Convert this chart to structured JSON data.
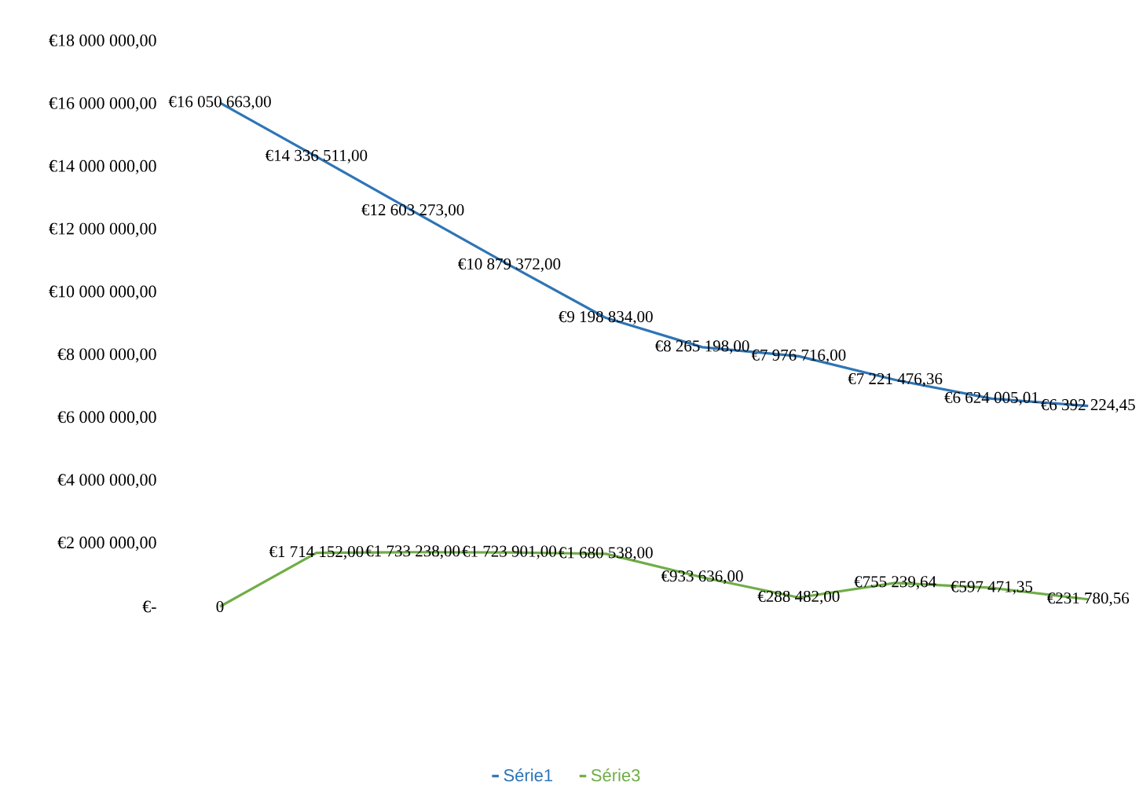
{
  "chart_data": {
    "type": "line",
    "categories": [
      null,
      null,
      null,
      null,
      null,
      null,
      null,
      null,
      null,
      null
    ],
    "series": [
      {
        "name": "Série1",
        "color": "#2e75b6",
        "values": [
          16050663,
          14336511,
          12603273,
          10879372,
          9198834,
          8265198,
          7976716,
          7221476.36,
          6624005.01,
          6392224.45
        ],
        "value_labels": [
          "€16 050 663,00",
          "€14 336 511,00",
          "€12 603 273,00",
          "€10 879 372,00",
          "€9 198 834,00",
          "€8 265 198,00",
          "€7 976 716,00",
          "€7 221 476,36",
          "€6 624 005,01",
          "€6 392 224,45"
        ]
      },
      {
        "name": "Série3",
        "color": "#70ad47",
        "values": [
          0,
          1714152,
          1733238,
          1723901,
          1680538,
          933636,
          288482,
          755239.64,
          597471.35,
          231780.56
        ],
        "value_labels": [
          "0",
          "€1 714 152,00",
          "€1 733 238,00",
          "€1 723 901,00",
          "€1 680 538,00",
          "€933 636,00",
          "€288 482,00",
          "€755 239,64",
          "€597 471,35",
          "€231 780,56"
        ]
      }
    ],
    "ylim": [
      0,
      18000000
    ],
    "yticks": [
      {
        "value": 0,
        "label": "€-"
      },
      {
        "value": 2000000,
        "label": "€2 000 000,00"
      },
      {
        "value": 4000000,
        "label": "€4 000 000,00"
      },
      {
        "value": 6000000,
        "label": "€6 000 000,00"
      },
      {
        "value": 8000000,
        "label": "€8 000 000,00"
      },
      {
        "value": 10000000,
        "label": "€10 000 000,00"
      },
      {
        "value": 12000000,
        "label": "€12 000 000,00"
      },
      {
        "value": 14000000,
        "label": "€14 000 000,00"
      },
      {
        "value": 16000000,
        "label": "€16 000 000,00"
      },
      {
        "value": 18000000,
        "label": "€18 000 000,00"
      }
    ],
    "legend": "bottom",
    "marker": "none",
    "line_style": "solid"
  }
}
